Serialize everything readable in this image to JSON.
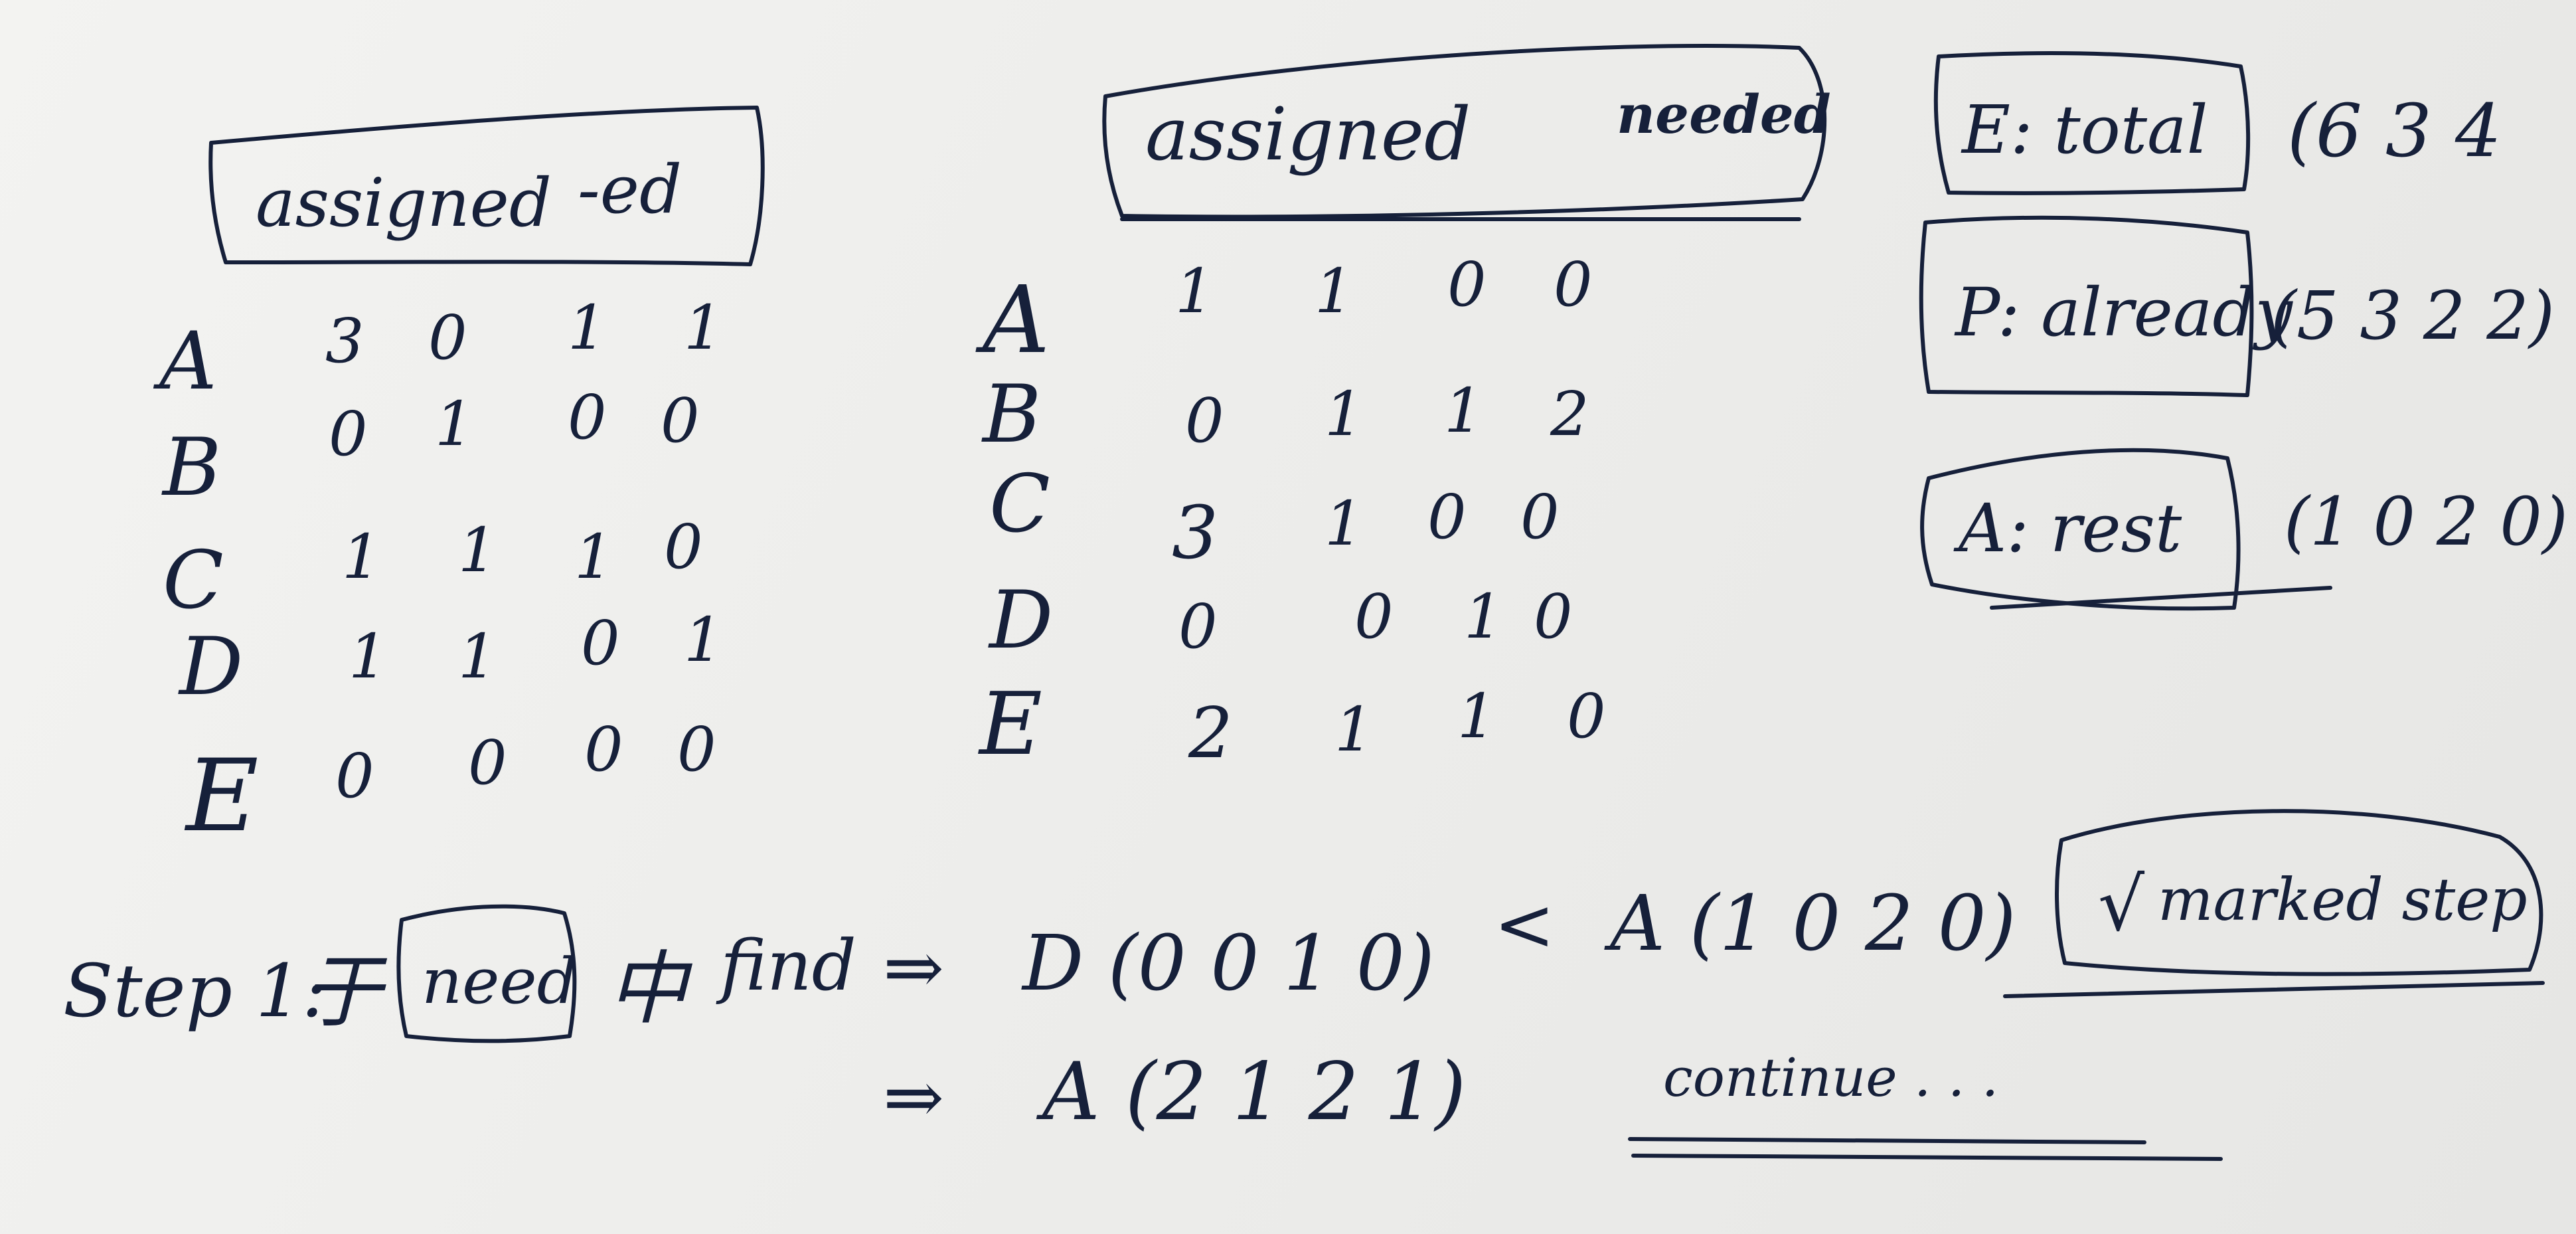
{
  "left_table": {
    "header": [
      "assigned",
      "-ed"
    ],
    "row_labels": [
      "A",
      "B",
      "C",
      "D",
      "E"
    ],
    "rows": [
      [
        "3",
        "0",
        "1",
        "1"
      ],
      [
        "0",
        "1",
        "0",
        "0"
      ],
      [
        "1",
        "1",
        "1",
        "0"
      ],
      [
        "1",
        "1",
        "0",
        "1"
      ],
      [
        "0",
        "0",
        "0",
        "0"
      ]
    ]
  },
  "right_table": {
    "header": [
      "assigned",
      "needed"
    ],
    "row_labels": [
      "A",
      "B",
      "C",
      "D",
      "E"
    ],
    "rows": [
      [
        "1",
        "1",
        "0",
        "0"
      ],
      [
        "0",
        "1",
        "1",
        "2"
      ],
      [
        "3",
        "1",
        "0",
        "0"
      ],
      [
        "0",
        "0",
        "1",
        "0"
      ],
      [
        "2",
        "1",
        "1",
        "0"
      ]
    ]
  },
  "vectors": [
    {
      "label": "E: total",
      "value": "(6 3 4"
    },
    {
      "label": "P: already",
      "value": "(5 3 2 2)"
    },
    {
      "label": "A: rest",
      "value": "(1 0 2 0)"
    }
  ],
  "steps": {
    "line1": {
      "prefix": "Step 1:",
      "char1": "于",
      "boxed": "need",
      "char2": "中",
      "find": "find",
      "arrow": "⇒",
      "d_vec": "D (0 0 1 0)",
      "lt": "<",
      "a_vec": "A (1 0 2 0)",
      "note_check": "√",
      "note_text": "marked  step"
    },
    "line2": {
      "arrow": "⇒",
      "a_vec": "A (2 1 2 1)",
      "cont": "continue . . ."
    }
  }
}
